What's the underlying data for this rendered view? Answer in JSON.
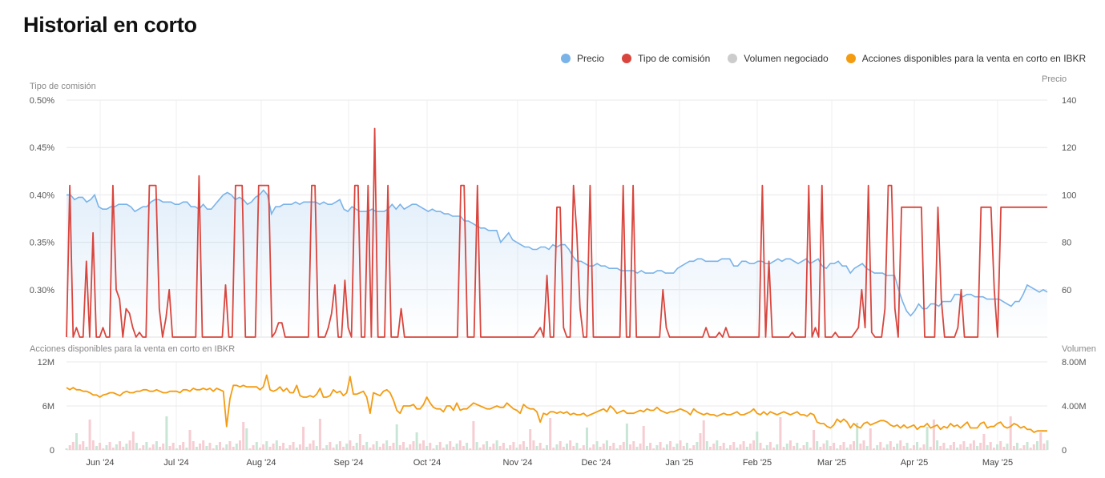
{
  "title": "Historial en corto",
  "legend": [
    {
      "label": "Precio",
      "color": "#7ab3e8"
    },
    {
      "label": "Tipo de comisión",
      "color": "#d9453d"
    },
    {
      "label": "Volumen negociado",
      "color": "#cccccc"
    },
    {
      "label": "Acciones disponibles para la venta en corto en IBKR",
      "color": "#f39c12"
    }
  ],
  "chart_data": [
    {
      "type": "line",
      "left_axis_title": "Tipo de comisión",
      "right_axis_title": "Precio",
      "left_ticks": [
        "0.50%",
        "0.45%",
        "0.40%",
        "0.35%",
        "0.30%"
      ],
      "right_ticks": [
        "140",
        "120",
        "100",
        "80",
        "60"
      ],
      "left_ylim": [
        0.25,
        0.5
      ],
      "right_ylim": [
        40,
        140
      ],
      "series": [
        {
          "name": "Precio",
          "color": "#7ab3e8",
          "values": [
            100,
            100,
            98,
            99,
            99,
            97,
            98,
            100,
            95,
            94,
            94,
            95,
            95,
            96,
            96,
            96,
            95,
            93,
            94,
            95,
            95,
            97,
            98,
            98,
            97,
            97,
            97,
            96,
            96,
            97,
            97,
            95,
            95,
            94,
            96,
            94,
            94,
            96,
            98,
            100,
            101,
            100,
            98,
            99,
            98,
            96,
            97,
            99,
            100,
            102,
            100,
            92,
            95,
            95,
            96,
            96,
            96,
            97,
            96,
            97,
            97,
            97,
            97,
            96,
            97,
            96,
            96,
            97,
            98,
            94,
            93,
            95,
            94,
            93,
            93,
            93,
            94,
            93,
            93,
            93,
            94,
            96,
            94,
            96,
            94,
            95,
            96,
            96,
            95,
            94,
            93,
            94,
            93,
            93,
            92,
            92,
            91,
            91,
            91,
            89,
            89,
            88,
            87,
            86,
            86,
            85,
            85,
            85,
            80,
            82,
            84,
            81,
            80,
            79,
            78,
            78,
            77,
            77,
            78,
            78,
            77,
            79,
            78,
            79,
            79,
            77,
            74,
            72,
            72,
            71,
            70,
            70,
            71,
            70,
            70,
            69,
            69,
            69,
            68,
            68,
            68,
            68,
            67,
            68,
            67,
            67,
            67,
            68,
            68,
            67,
            67,
            67,
            69,
            70,
            71,
            72,
            72,
            73,
            73,
            72,
            72,
            72,
            72,
            73,
            73,
            73,
            70,
            70,
            72,
            72,
            71,
            71,
            72,
            72,
            71,
            71,
            72,
            73,
            72,
            73,
            73,
            72,
            71,
            72,
            73,
            71,
            72,
            73,
            70,
            69,
            71,
            71,
            72,
            70,
            70,
            67,
            69,
            70,
            71,
            69,
            68,
            67,
            67,
            67,
            66,
            66,
            66,
            60,
            55,
            51,
            49,
            51,
            54,
            52,
            52,
            54,
            54,
            53,
            55,
            55,
            55,
            58,
            58,
            57,
            58,
            58,
            57,
            57,
            57,
            56,
            56,
            56,
            56,
            55,
            54,
            53,
            55,
            55,
            58,
            62,
            61,
            60,
            59,
            60,
            59
          ]
        },
        {
          "name": "Tipo de comisión",
          "color": "#d9453d",
          "values": [
            0.25,
            0.41,
            0.25,
            0.26,
            0.25,
            0.25,
            0.33,
            0.25,
            0.36,
            0.25,
            0.25,
            0.26,
            0.25,
            0.25,
            0.41,
            0.3,
            0.29,
            0.25,
            0.28,
            0.275,
            0.26,
            0.25,
            0.255,
            0.25,
            0.25,
            0.41,
            0.41,
            0.41,
            0.28,
            0.25,
            0.27,
            0.3,
            0.25,
            0.25,
            0.25,
            0.25,
            0.25,
            0.25,
            0.25,
            0.25,
            0.42,
            0.25,
            0.25,
            0.25,
            0.25,
            0.25,
            0.25,
            0.25,
            0.305,
            0.25,
            0.25,
            0.41,
            0.41,
            0.41,
            0.25,
            0.25,
            0.25,
            0.25,
            0.41,
            0.41,
            0.41,
            0.41,
            0.25,
            0.255,
            0.265,
            0.265,
            0.25,
            0.25,
            0.25,
            0.25,
            0.25,
            0.25,
            0.25,
            0.25,
            0.41,
            0.41,
            0.25,
            0.25,
            0.25,
            0.26,
            0.275,
            0.305,
            0.25,
            0.25,
            0.31,
            0.26,
            0.25,
            0.41,
            0.41,
            0.25,
            0.25,
            0.41,
            0.25,
            0.47,
            0.25,
            0.25,
            0.25,
            0.41,
            0.25,
            0.25,
            0.25,
            0.28,
            0.25,
            0.25,
            0.25,
            0.25,
            0.25,
            0.25,
            0.25,
            0.25,
            0.25,
            0.25,
            0.25,
            0.25,
            0.25,
            0.25,
            0.25,
            0.25,
            0.25,
            0.41,
            0.41,
            0.25,
            0.25,
            0.25,
            0.41,
            0.25,
            0.25,
            0.25,
            0.25,
            0.25,
            0.25,
            0.25,
            0.25,
            0.25,
            0.25,
            0.25,
            0.25,
            0.25,
            0.25,
            0.25,
            0.25,
            0.25,
            0.255,
            0.26,
            0.25,
            0.315,
            0.25,
            0.25,
            0.387,
            0.387,
            0.26,
            0.25,
            0.25,
            0.41,
            0.36,
            0.28,
            0.25,
            0.25,
            0.41,
            0.25,
            0.25,
            0.25,
            0.25,
            0.25,
            0.25,
            0.25,
            0.25,
            0.25,
            0.41,
            0.25,
            0.25,
            0.41,
            0.25,
            0.25,
            0.25,
            0.25,
            0.25,
            0.25,
            0.25,
            0.25,
            0.3,
            0.26,
            0.25,
            0.25,
            0.25,
            0.25,
            0.25,
            0.25,
            0.25,
            0.25,
            0.25,
            0.25,
            0.25,
            0.26,
            0.25,
            0.25,
            0.25,
            0.255,
            0.25,
            0.26,
            0.25,
            0.25,
            0.25,
            0.25,
            0.25,
            0.25,
            0.25,
            0.25,
            0.25,
            0.25,
            0.41,
            0.25,
            0.33,
            0.25,
            0.25,
            0.25,
            0.25,
            0.25,
            0.25,
            0.255,
            0.25,
            0.25,
            0.25,
            0.25,
            0.41,
            0.25,
            0.26,
            0.25,
            0.41,
            0.25,
            0.25,
            0.25,
            0.255,
            0.25,
            0.25,
            0.25,
            0.25,
            0.25,
            0.255,
            0.26,
            0.3,
            0.26,
            0.41,
            0.255,
            0.25,
            0.25,
            0.25,
            0.28,
            0.41,
            0.41,
            0.28,
            0.25,
            0.387,
            0.387,
            0.387,
            0.387,
            0.387,
            0.387,
            0.387,
            0.25,
            0.25,
            0.25,
            0.25,
            0.387,
            0.29,
            0.25,
            0.25,
            0.25,
            0.25,
            0.26,
            0.3,
            0.25,
            0.25,
            0.25,
            0.25,
            0.25,
            0.387,
            0.387,
            0.387,
            0.387,
            0.3,
            0.25,
            0.387,
            0.387,
            0.387,
            0.387,
            0.387,
            0.387,
            0.387,
            0.387,
            0.387,
            0.387,
            0.387,
            0.387,
            0.387,
            0.387,
            0.387
          ]
        }
      ]
    },
    {
      "type": "line",
      "left_axis_title": "Acciones disponibles para la venta en corto en IBKR",
      "right_axis_title": "Volumen",
      "left_ticks": [
        "12M",
        "6M",
        "0"
      ],
      "right_ticks": [
        "8.00M",
        "4.00M",
        "0"
      ],
      "left_ylim": [
        0,
        12
      ],
      "right_ylim": [
        0,
        8
      ],
      "x_ticks": [
        "Jun '24",
        "Jul '24",
        "Aug '24",
        "Sep '24",
        "Oct '24",
        "Nov '24",
        "Dec '24",
        "Jan '25",
        "Feb '25",
        "Mar '25",
        "Apr '25",
        "May '25"
      ],
      "series": [
        {
          "name": "Acciones disponibles para la venta en corto en IBKR",
          "color": "#f39c12",
          "values": [
            8.5,
            8.2,
            8.5,
            8.2,
            8.2,
            8.0,
            8.0,
            7.8,
            7.5,
            7.5,
            7.2,
            7.5,
            7.6,
            7.8,
            7.8,
            7.6,
            7.4,
            7.8,
            8.0,
            7.8,
            7.8,
            8.0,
            8.0,
            8.2,
            8.2,
            8.0,
            8.0,
            8.2,
            8.0,
            7.8,
            7.8,
            8.0,
            8.0,
            8.0,
            7.8,
            8.2,
            8.2,
            8.0,
            8.4,
            8.2,
            8.2,
            8.4,
            8.2,
            8.4,
            8.0,
            8.4,
            8.2,
            8.0,
            3.2,
            7.0,
            8.8,
            8.8,
            8.6,
            8.8,
            8.6,
            8.6,
            8.6,
            8.6,
            8.2,
            8.6,
            10.2,
            8.2,
            8.0,
            8.2,
            8.6,
            8.0,
            8.4,
            7.8,
            7.8,
            8.8,
            7.4,
            7.2,
            7.2,
            7.4,
            7.2,
            7.6,
            8.4,
            7.2,
            7.2,
            7.4,
            8.2,
            7.8,
            8.0,
            7.4,
            7.8,
            10.0,
            7.6,
            7.6,
            7.8,
            8.0,
            7.2,
            5.0,
            7.8,
            7.6,
            7.4,
            8.0,
            8.2,
            7.8,
            6.8,
            5.4,
            5.0,
            6.0,
            6.0,
            6.0,
            6.2,
            5.6,
            5.6,
            6.2,
            7.2,
            6.4,
            5.8,
            5.6,
            5.6,
            5.2,
            6.0,
            6.0,
            5.4,
            6.4,
            5.4,
            5.6,
            5.6,
            6.0,
            6.4,
            6.2,
            6.0,
            5.8,
            5.6,
            5.6,
            5.8,
            6.0,
            5.8,
            5.8,
            6.4,
            6.0,
            5.6,
            5.4,
            5.0,
            6.2,
            5.8,
            5.6,
            5.6,
            5.2,
            3.8,
            5.0,
            4.8,
            5.2,
            5.2,
            5.0,
            5.2,
            5.0,
            5.2,
            4.8,
            5.0,
            4.8,
            4.8,
            5.0,
            4.6,
            4.8,
            5.0,
            5.2,
            5.4,
            5.6,
            5.2,
            6.0,
            5.6,
            5.0,
            5.2,
            5.4,
            5.0,
            5.0,
            5.0,
            5.2,
            5.4,
            5.2,
            5.6,
            5.4,
            5.4,
            5.8,
            5.4,
            5.2,
            5.0,
            5.2,
            5.2,
            5.4,
            5.6,
            5.4,
            5.2,
            4.8,
            5.6,
            5.2,
            5.0,
            4.8,
            5.0,
            4.8,
            4.8,
            4.6,
            4.8,
            5.0,
            4.8,
            4.8,
            5.0,
            5.2,
            4.8,
            4.8,
            5.0,
            5.2,
            5.6,
            5.0,
            4.8,
            5.2,
            4.8,
            5.2,
            5.0,
            4.8,
            5.0,
            5.2,
            5.0,
            4.8,
            5.0,
            5.2,
            4.8,
            4.8,
            4.6,
            5.0,
            4.8,
            3.8,
            3.6,
            3.6,
            3.2,
            3.0,
            3.4,
            4.2,
            3.8,
            4.2,
            3.8,
            3.0,
            3.6,
            3.2,
            3.0,
            3.6,
            3.8,
            3.4,
            3.6,
            3.8,
            4.0,
            4.0,
            3.8,
            3.4,
            3.2,
            3.4,
            3.0,
            3.4,
            3.0,
            3.2,
            3.4,
            2.8,
            3.2,
            3.2,
            3.6,
            3.0,
            3.2,
            3.4,
            2.8,
            3.2,
            3.0,
            3.6,
            3.2,
            3.4,
            3.0,
            3.4,
            3.8,
            3.0,
            3.0,
            3.0,
            3.6,
            3.8,
            3.0,
            3.2,
            3.2,
            3.6,
            3.8,
            3.2,
            3.0,
            3.2,
            3.6,
            3.4,
            3.0,
            3.2,
            2.8,
            2.8,
            2.4,
            2.6,
            2.6,
            2.6,
            2.6
          ]
        }
      ]
    }
  ]
}
